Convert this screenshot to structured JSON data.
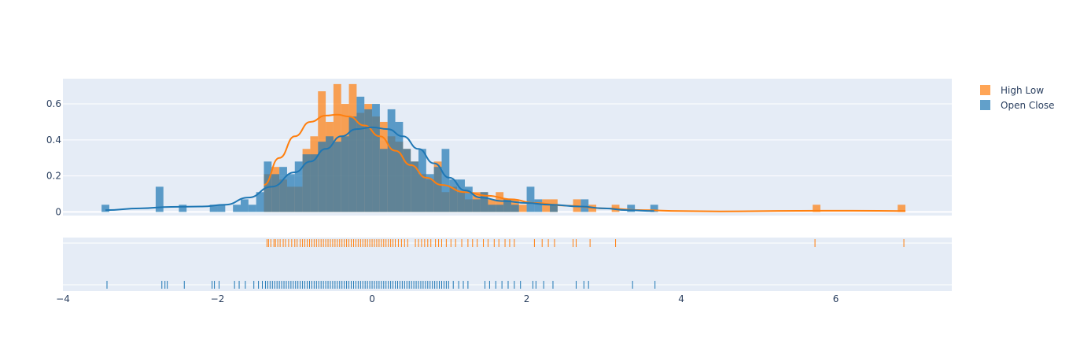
{
  "chart_data": {
    "type": "histogram",
    "legend": {
      "placement": "top-right",
      "entries": [
        {
          "label": "High Low",
          "color": "#ff7f0e"
        },
        {
          "label": "Open Close",
          "color": "#1f77b4"
        }
      ]
    },
    "xaxis": {
      "range": [
        -4,
        7.5
      ],
      "tick_labels": [
        "−4",
        "−2",
        "0",
        "2",
        "4",
        "6"
      ],
      "tick_values": [
        -4,
        -2,
        0,
        2,
        4,
        6
      ]
    },
    "yaxis_hist": {
      "range": [
        -0.02,
        0.74
      ],
      "tick_labels": [
        "0",
        "0.2",
        "0.4",
        "0.6"
      ],
      "tick_values": [
        0,
        0.2,
        0.4,
        0.6
      ],
      "grid": true
    },
    "bin_width": 0.1,
    "series": [
      {
        "name": "High Low",
        "color": "#ff7f0e",
        "histogram": [
          [
            -1.35,
            0.21
          ],
          [
            -1.25,
            0.25
          ],
          [
            -1.15,
            0.18
          ],
          [
            -1.05,
            0.14
          ],
          [
            -0.95,
            0.14
          ],
          [
            -0.85,
            0.35
          ],
          [
            -0.75,
            0.42
          ],
          [
            -0.65,
            0.67
          ],
          [
            -0.55,
            0.5
          ],
          [
            -0.45,
            0.71
          ],
          [
            -0.35,
            0.6
          ],
          [
            -0.25,
            0.71
          ],
          [
            -0.15,
            0.55
          ],
          [
            -0.05,
            0.6
          ],
          [
            0.05,
            0.53
          ],
          [
            0.15,
            0.5
          ],
          [
            0.25,
            0.42
          ],
          [
            0.35,
            0.39
          ],
          [
            0.45,
            0.35
          ],
          [
            0.55,
            0.28
          ],
          [
            0.65,
            0.21
          ],
          [
            0.75,
            0.18
          ],
          [
            0.85,
            0.28
          ],
          [
            0.95,
            0.11
          ],
          [
            1.05,
            0.14
          ],
          [
            1.15,
            0.11
          ],
          [
            1.25,
            0.07
          ],
          [
            1.35,
            0.11
          ],
          [
            1.45,
            0.11
          ],
          [
            1.55,
            0.07
          ],
          [
            1.65,
            0.11
          ],
          [
            1.75,
            0.07
          ],
          [
            1.85,
            0.07
          ],
          [
            1.95,
            0.04
          ],
          [
            2.25,
            0.07
          ],
          [
            2.35,
            0.07
          ],
          [
            2.65,
            0.07
          ],
          [
            2.85,
            0.04
          ],
          [
            3.15,
            0.04
          ],
          [
            5.75,
            0.04
          ],
          [
            6.85,
            0.04
          ]
        ],
        "kde": [
          [
            -1.4,
            0.15
          ],
          [
            -1.2,
            0.3
          ],
          [
            -1.0,
            0.42
          ],
          [
            -0.8,
            0.5
          ],
          [
            -0.6,
            0.535
          ],
          [
            -0.45,
            0.54
          ],
          [
            -0.3,
            0.53
          ],
          [
            -0.1,
            0.48
          ],
          [
            0.1,
            0.42
          ],
          [
            0.3,
            0.34
          ],
          [
            0.5,
            0.26
          ],
          [
            0.7,
            0.19
          ],
          [
            0.9,
            0.15
          ],
          [
            1.2,
            0.11
          ],
          [
            1.5,
            0.09
          ],
          [
            1.8,
            0.07
          ],
          [
            2.1,
            0.05
          ],
          [
            2.5,
            0.035
          ],
          [
            3.0,
            0.02
          ],
          [
            3.5,
            0.01
          ],
          [
            4.0,
            0.005
          ],
          [
            4.5,
            0.003
          ],
          [
            5.5,
            0.006
          ],
          [
            6.2,
            0.007
          ],
          [
            6.9,
            0.005
          ]
        ],
        "rug": [
          -1.36,
          -1.34,
          -1.31,
          -1.27,
          -1.25,
          -1.22,
          -1.19,
          -1.15,
          -1.12,
          -1.08,
          -1.04,
          -1.0,
          -0.97,
          -0.93,
          -0.9,
          -0.87,
          -0.84,
          -0.81,
          -0.78,
          -0.75,
          -0.72,
          -0.69,
          -0.66,
          -0.63,
          -0.6,
          -0.57,
          -0.54,
          -0.51,
          -0.48,
          -0.45,
          -0.42,
          -0.39,
          -0.36,
          -0.33,
          -0.3,
          -0.27,
          -0.24,
          -0.21,
          -0.18,
          -0.15,
          -0.12,
          -0.09,
          -0.06,
          -0.03,
          0.0,
          0.03,
          0.06,
          0.09,
          0.12,
          0.15,
          0.18,
          0.21,
          0.24,
          0.27,
          0.3,
          0.34,
          0.38,
          0.42,
          0.46,
          0.56,
          0.6,
          0.64,
          0.68,
          0.72,
          0.76,
          0.82,
          0.86,
          0.9,
          0.96,
          1.02,
          1.08,
          1.16,
          1.24,
          1.3,
          1.36,
          1.44,
          1.5,
          1.58,
          1.64,
          1.72,
          1.78,
          1.84,
          2.1,
          2.2,
          2.28,
          2.36,
          2.6,
          2.64,
          2.82,
          3.15,
          5.73,
          6.88
        ]
      },
      {
        "name": "Open Close",
        "color": "#1f77b4",
        "histogram": [
          [
            -3.45,
            0.04
          ],
          [
            -2.75,
            0.14
          ],
          [
            -2.45,
            0.04
          ],
          [
            -2.05,
            0.04
          ],
          [
            -1.95,
            0.04
          ],
          [
            -1.75,
            0.04
          ],
          [
            -1.65,
            0.07
          ],
          [
            -1.55,
            0.04
          ],
          [
            -1.45,
            0.11
          ],
          [
            -1.35,
            0.28
          ],
          [
            -1.25,
            0.21
          ],
          [
            -1.15,
            0.25
          ],
          [
            -1.05,
            0.21
          ],
          [
            -0.95,
            0.28
          ],
          [
            -0.85,
            0.32
          ],
          [
            -0.75,
            0.32
          ],
          [
            -0.65,
            0.39
          ],
          [
            -0.55,
            0.42
          ],
          [
            -0.45,
            0.39
          ],
          [
            -0.35,
            0.42
          ],
          [
            -0.25,
            0.53
          ],
          [
            -0.15,
            0.64
          ],
          [
            -0.05,
            0.57
          ],
          [
            0.05,
            0.6
          ],
          [
            0.15,
            0.35
          ],
          [
            0.25,
            0.57
          ],
          [
            0.35,
            0.5
          ],
          [
            0.45,
            0.35
          ],
          [
            0.55,
            0.28
          ],
          [
            0.65,
            0.35
          ],
          [
            0.75,
            0.21
          ],
          [
            0.85,
            0.25
          ],
          [
            0.95,
            0.35
          ],
          [
            1.05,
            0.18
          ],
          [
            1.15,
            0.18
          ],
          [
            1.25,
            0.14
          ],
          [
            1.35,
            0.07
          ],
          [
            1.45,
            0.11
          ],
          [
            1.55,
            0.04
          ],
          [
            1.65,
            0.04
          ],
          [
            1.75,
            0.07
          ],
          [
            1.85,
            0.04
          ],
          [
            2.05,
            0.14
          ],
          [
            2.15,
            0.07
          ],
          [
            2.35,
            0.04
          ],
          [
            2.75,
            0.07
          ],
          [
            3.35,
            0.04
          ],
          [
            3.65,
            0.04
          ]
        ],
        "kde": [
          [
            -3.45,
            0.01
          ],
          [
            -3.0,
            0.02
          ],
          [
            -2.6,
            0.028
          ],
          [
            -2.2,
            0.03
          ],
          [
            -1.9,
            0.04
          ],
          [
            -1.6,
            0.08
          ],
          [
            -1.3,
            0.14
          ],
          [
            -1.0,
            0.22
          ],
          [
            -0.8,
            0.28
          ],
          [
            -0.6,
            0.35
          ],
          [
            -0.4,
            0.42
          ],
          [
            -0.2,
            0.46
          ],
          [
            0.0,
            0.47
          ],
          [
            0.2,
            0.46
          ],
          [
            0.4,
            0.42
          ],
          [
            0.6,
            0.35
          ],
          [
            0.8,
            0.27
          ],
          [
            1.0,
            0.19
          ],
          [
            1.2,
            0.12
          ],
          [
            1.4,
            0.08
          ],
          [
            1.7,
            0.06
          ],
          [
            2.0,
            0.05
          ],
          [
            2.3,
            0.04
          ],
          [
            2.7,
            0.03
          ],
          [
            3.0,
            0.02
          ],
          [
            3.3,
            0.01
          ],
          [
            3.65,
            0.005
          ]
        ],
        "rug": [
          -3.43,
          -2.72,
          -2.68,
          -2.65,
          -2.43,
          -2.07,
          -2.04,
          -1.98,
          -1.78,
          -1.72,
          -1.64,
          -1.53,
          -1.47,
          -1.42,
          -1.38,
          -1.35,
          -1.32,
          -1.29,
          -1.26,
          -1.23,
          -1.2,
          -1.17,
          -1.14,
          -1.11,
          -1.08,
          -1.05,
          -1.02,
          -0.99,
          -0.96,
          -0.93,
          -0.9,
          -0.87,
          -0.84,
          -0.81,
          -0.78,
          -0.75,
          -0.72,
          -0.69,
          -0.66,
          -0.63,
          -0.6,
          -0.57,
          -0.54,
          -0.51,
          -0.48,
          -0.45,
          -0.42,
          -0.39,
          -0.36,
          -0.33,
          -0.3,
          -0.27,
          -0.24,
          -0.21,
          -0.18,
          -0.15,
          -0.12,
          -0.09,
          -0.06,
          -0.03,
          0.0,
          0.03,
          0.06,
          0.09,
          0.12,
          0.15,
          0.18,
          0.21,
          0.24,
          0.27,
          0.3,
          0.33,
          0.36,
          0.39,
          0.42,
          0.45,
          0.48,
          0.51,
          0.54,
          0.57,
          0.6,
          0.63,
          0.66,
          0.69,
          0.72,
          0.75,
          0.78,
          0.81,
          0.84,
          0.87,
          0.9,
          0.93,
          0.96,
          0.99,
          1.05,
          1.12,
          1.18,
          1.24,
          1.46,
          1.52,
          1.6,
          1.68,
          1.76,
          1.84,
          1.92,
          2.08,
          2.12,
          2.22,
          2.34,
          2.64,
          2.74,
          2.8,
          3.37,
          3.66
        ]
      }
    ]
  }
}
